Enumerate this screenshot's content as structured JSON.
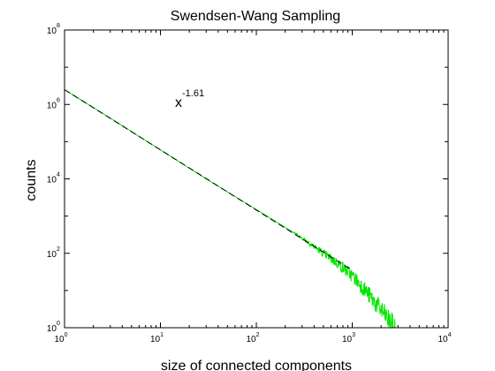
{
  "chart_data": {
    "type": "line",
    "title": "Swendsen-Wang Sampling",
    "xlabel": "size of connected components",
    "ylabel": "counts",
    "xscale": "log",
    "yscale": "log",
    "xlim": [
      1,
      10000
    ],
    "ylim": [
      1,
      100000000
    ],
    "x_ticks": [
      {
        "base": "10",
        "exp": "0"
      },
      {
        "base": "10",
        "exp": "1"
      },
      {
        "base": "10",
        "exp": "2"
      },
      {
        "base": "10",
        "exp": "3"
      },
      {
        "base": "10",
        "exp": "4"
      }
    ],
    "y_ticks": [
      {
        "base": "10",
        "exp": "0"
      },
      {
        "base": "10",
        "exp": "2"
      },
      {
        "base": "10",
        "exp": "4"
      },
      {
        "base": "10",
        "exp": "6"
      },
      {
        "base": "10",
        "exp": "8"
      }
    ],
    "grid": false,
    "annotation": {
      "base": "x",
      "exp": "-1.61",
      "x": 15,
      "y": 1200000
    },
    "series": [
      {
        "style": "solid",
        "color": "#00e600",
        "points": [
          [
            1,
            2500000
          ],
          [
            3,
            430000
          ],
          [
            10,
            60000
          ],
          [
            30,
            10000
          ],
          [
            100,
            1500
          ],
          [
            200,
            500
          ],
          [
            300,
            260
          ],
          [
            500,
            100
          ],
          [
            700,
            55
          ],
          [
            1000,
            25
          ],
          [
            1300,
            12
          ],
          [
            1600,
            6
          ],
          [
            2000,
            3
          ],
          [
            2400,
            1.6
          ],
          [
            2800,
            1
          ]
        ]
      },
      {
        "style": "dashed",
        "color": "#000000",
        "points": [
          [
            1,
            2500000
          ],
          [
            1000,
            35
          ]
        ]
      }
    ]
  }
}
